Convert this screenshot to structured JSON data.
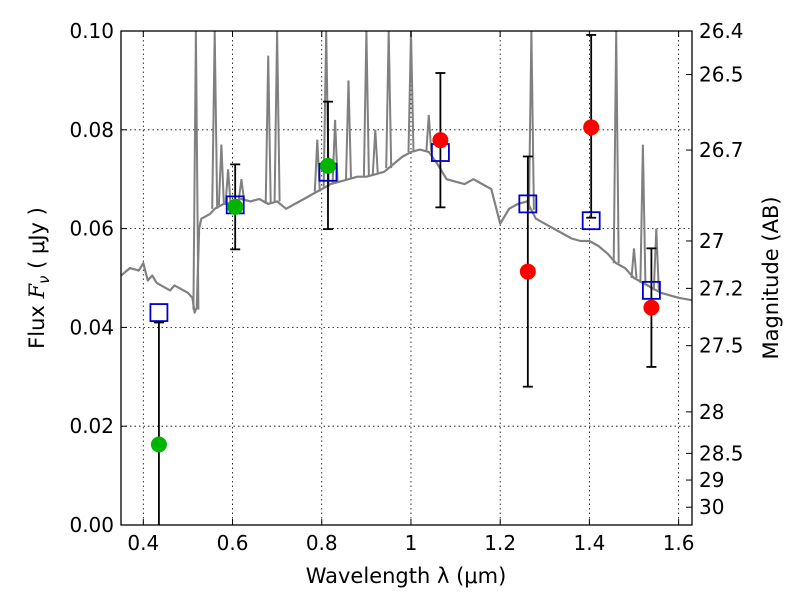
{
  "chart_data": {
    "type": "scatter",
    "xlabel": "Wavelength  λ (μm)",
    "ylabel_prefix": "Flux ",
    "ylabel_symbol": "F",
    "ylabel_sub": "ν",
    "ylabel_unit": "  ( μJy )",
    "y2label": "Magnitude (AB)",
    "xlim": [
      0.35,
      1.63
    ],
    "ylim": [
      0.0,
      0.1
    ],
    "grid": true,
    "x_ticks": [
      {
        "value": 0.4,
        "label": "0.4"
      },
      {
        "value": 0.6,
        "label": "0.6"
      },
      {
        "value": 0.8,
        "label": "0.8"
      },
      {
        "value": 1.0,
        "label": "1"
      },
      {
        "value": 1.2,
        "label": "1.2"
      },
      {
        "value": 1.4,
        "label": "1.4"
      },
      {
        "value": 1.6,
        "label": "1.6"
      }
    ],
    "y_ticks": [
      {
        "value": 0.0,
        "label": "0.00"
      },
      {
        "value": 0.02,
        "label": "0.02"
      },
      {
        "value": 0.04,
        "label": "0.04"
      },
      {
        "value": 0.06,
        "label": "0.06"
      },
      {
        "value": 0.08,
        "label": "0.08"
      },
      {
        "value": 0.1,
        "label": "0.10"
      }
    ],
    "y2_ticks": [
      {
        "label": "26.4",
        "flux": 0.1
      },
      {
        "label": "26.5",
        "flux": 0.0912
      },
      {
        "label": "26.7",
        "flux": 0.0759
      },
      {
        "label": "27",
        "flux": 0.0575
      },
      {
        "label": "27.2",
        "flux": 0.0479
      },
      {
        "label": "27.5",
        "flux": 0.0363
      },
      {
        "label": "28",
        "flux": 0.0229
      },
      {
        "label": "28.5",
        "flux": 0.0145
      },
      {
        "label": "29",
        "flux": 0.0091
      },
      {
        "label": "30",
        "flux": 0.0036
      }
    ],
    "series": [
      {
        "kind": "model-spectrum",
        "color": "#808080",
        "x": [
          0.35,
          0.37,
          0.39,
          0.4,
          0.41,
          0.42,
          0.43,
          0.44,
          0.45,
          0.46,
          0.47,
          0.48,
          0.49,
          0.5,
          0.51,
          0.515,
          0.52,
          0.525,
          0.53,
          0.54,
          0.55,
          0.56,
          0.57,
          0.58,
          0.59,
          0.6,
          0.62,
          0.64,
          0.66,
          0.68,
          0.7,
          0.72,
          0.74,
          0.76,
          0.78,
          0.8,
          0.82,
          0.84,
          0.86,
          0.88,
          0.9,
          0.92,
          0.94,
          0.96,
          0.98,
          1.0,
          1.02,
          1.04,
          1.06,
          1.08,
          1.1,
          1.12,
          1.14,
          1.16,
          1.18,
          1.2,
          1.22,
          1.24,
          1.26,
          1.28,
          1.3,
          1.32,
          1.34,
          1.36,
          1.38,
          1.4,
          1.42,
          1.44,
          1.46,
          1.48,
          1.5,
          1.52,
          1.54,
          1.56,
          1.58,
          1.6,
          1.63
        ],
        "y": [
          0.0505,
          0.052,
          0.0515,
          0.053,
          0.0495,
          0.0505,
          0.049,
          0.0485,
          0.048,
          0.0475,
          0.0485,
          0.048,
          0.0475,
          0.047,
          0.046,
          0.043,
          0.044,
          0.06,
          0.062,
          0.0625,
          0.063,
          0.064,
          0.0645,
          0.065,
          0.065,
          0.0655,
          0.066,
          0.0655,
          0.066,
          0.065,
          0.0655,
          0.064,
          0.065,
          0.066,
          0.067,
          0.068,
          0.069,
          0.0695,
          0.07,
          0.0705,
          0.0705,
          0.071,
          0.0715,
          0.073,
          0.0745,
          0.0755,
          0.076,
          0.0755,
          0.073,
          0.07,
          0.0695,
          0.069,
          0.07,
          0.069,
          0.068,
          0.061,
          0.064,
          0.065,
          0.0655,
          0.062,
          0.061,
          0.06,
          0.059,
          0.058,
          0.0575,
          0.0575,
          0.0565,
          0.055,
          0.053,
          0.052,
          0.05,
          0.049,
          0.048,
          0.047,
          0.0465,
          0.046,
          0.0455
        ]
      },
      {
        "kind": "model-lines",
        "color": "#808080",
        "lines": [
          {
            "x": 0.518,
            "peak": 0.1
          },
          {
            "x": 0.56,
            "peak": 0.1
          },
          {
            "x": 0.575,
            "peak": 0.077
          },
          {
            "x": 0.59,
            "peak": 0.072
          },
          {
            "x": 0.62,
            "peak": 0.07
          },
          {
            "x": 0.68,
            "peak": 0.095
          },
          {
            "x": 0.7,
            "peak": 0.1
          },
          {
            "x": 0.79,
            "peak": 0.078
          },
          {
            "x": 0.81,
            "peak": 0.1
          },
          {
            "x": 0.83,
            "peak": 0.082
          },
          {
            "x": 0.86,
            "peak": 0.09
          },
          {
            "x": 0.9,
            "peak": 0.1
          },
          {
            "x": 0.92,
            "peak": 0.08
          },
          {
            "x": 0.95,
            "peak": 0.1
          },
          {
            "x": 1.0,
            "peak": 0.1
          },
          {
            "x": 1.04,
            "peak": 0.083
          },
          {
            "x": 1.27,
            "peak": 0.1
          },
          {
            "x": 1.46,
            "peak": 0.1
          },
          {
            "x": 1.5,
            "peak": 0.056
          },
          {
            "x": 1.52,
            "peak": 0.077
          },
          {
            "x": 1.55,
            "peak": 0.06
          }
        ]
      },
      {
        "kind": "model-photometry",
        "marker": "open-square",
        "color": "#0000cc",
        "x": [
          0.435,
          0.606,
          0.814,
          1.066,
          1.262,
          1.404,
          1.539
        ],
        "y": [
          0.043,
          0.0648,
          0.0714,
          0.0754,
          0.065,
          0.0616,
          0.0475
        ]
      },
      {
        "kind": "observed-optical",
        "marker": "filled-circle",
        "color": "#00b400",
        "x": [
          0.435,
          0.606,
          0.814
        ],
        "y": [
          0.0163,
          0.0644,
          0.0727
        ],
        "err_low": [
          0.0,
          0.0558,
          0.0599
        ],
        "err_high": [
          0.041,
          0.073,
          0.0857
        ]
      },
      {
        "kind": "observed-nir",
        "marker": "filled-circle",
        "color": "#ff0000",
        "x": [
          1.066,
          1.262,
          1.404,
          1.539
        ],
        "y": [
          0.0779,
          0.0513,
          0.0805,
          0.044
        ],
        "err_low": [
          0.0643,
          0.028,
          0.0622,
          0.032
        ],
        "err_high": [
          0.0915,
          0.0746,
          0.0992,
          0.056
        ]
      }
    ]
  }
}
